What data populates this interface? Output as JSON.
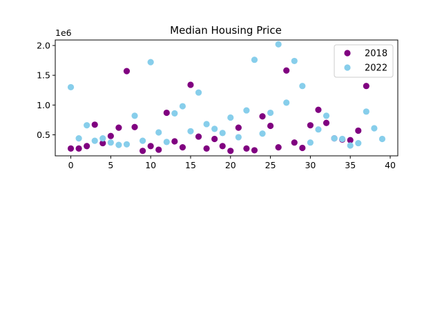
{
  "chart_data": {
    "type": "scatter",
    "title": "Median Housing Price",
    "xlabel": "",
    "ylabel": "",
    "y_offset_label": "1e6",
    "xlim": [
      -1.95,
      40.95
    ],
    "ylim": [
      0.1465,
      2.0925
    ],
    "x_ticks": [
      0,
      5,
      10,
      15,
      20,
      25,
      30,
      35,
      40
    ],
    "y_ticks": [
      0.5,
      1.0,
      1.5,
      2.0
    ],
    "y_tick_labels": [
      "0.5",
      "1.0",
      "1.5",
      "2.0"
    ],
    "grid": false,
    "legend_position": "top-right",
    "series": [
      {
        "name": "2018",
        "color": "#800080",
        "x": [
          0,
          1,
          2,
          3,
          4,
          5,
          6,
          7,
          8,
          9,
          10,
          11,
          12,
          13,
          14,
          15,
          16,
          17,
          18,
          19,
          20,
          21,
          22,
          23,
          24,
          25,
          26,
          27,
          28,
          29,
          30,
          31,
          32,
          33,
          34,
          35,
          36,
          37
        ],
        "y": [
          0.27,
          0.27,
          0.31,
          0.67,
          0.36,
          0.48,
          0.62,
          1.57,
          0.63,
          0.23,
          0.31,
          0.25,
          0.87,
          0.39,
          0.29,
          1.34,
          0.47,
          0.27,
          0.43,
          0.31,
          0.23,
          0.62,
          0.27,
          0.24,
          0.81,
          0.65,
          0.29,
          1.58,
          0.37,
          0.28,
          0.66,
          0.92,
          0.7,
          0.44,
          0.42,
          0.41,
          0.57,
          1.32
        ]
      },
      {
        "name": "2022",
        "color": "#87CEEB",
        "x": [
          0,
          1,
          2,
          3,
          4,
          5,
          6,
          7,
          8,
          9,
          10,
          11,
          12,
          13,
          14,
          15,
          16,
          17,
          18,
          19,
          20,
          21,
          22,
          23,
          24,
          25,
          26,
          27,
          28,
          29,
          30,
          31,
          32,
          33,
          34,
          35,
          36,
          37,
          38,
          39
        ],
        "y": [
          1.3,
          0.44,
          0.66,
          0.4,
          0.44,
          0.37,
          0.33,
          0.34,
          0.82,
          0.4,
          1.72,
          0.54,
          0.38,
          0.86,
          0.98,
          0.56,
          1.21,
          0.68,
          0.6,
          0.53,
          0.79,
          0.46,
          0.91,
          1.76,
          0.52,
          0.87,
          2.02,
          1.04,
          1.74,
          1.32,
          0.37,
          0.59,
          0.82,
          0.44,
          0.43,
          0.32,
          0.36,
          0.89,
          0.61,
          0.43
        ]
      }
    ]
  }
}
